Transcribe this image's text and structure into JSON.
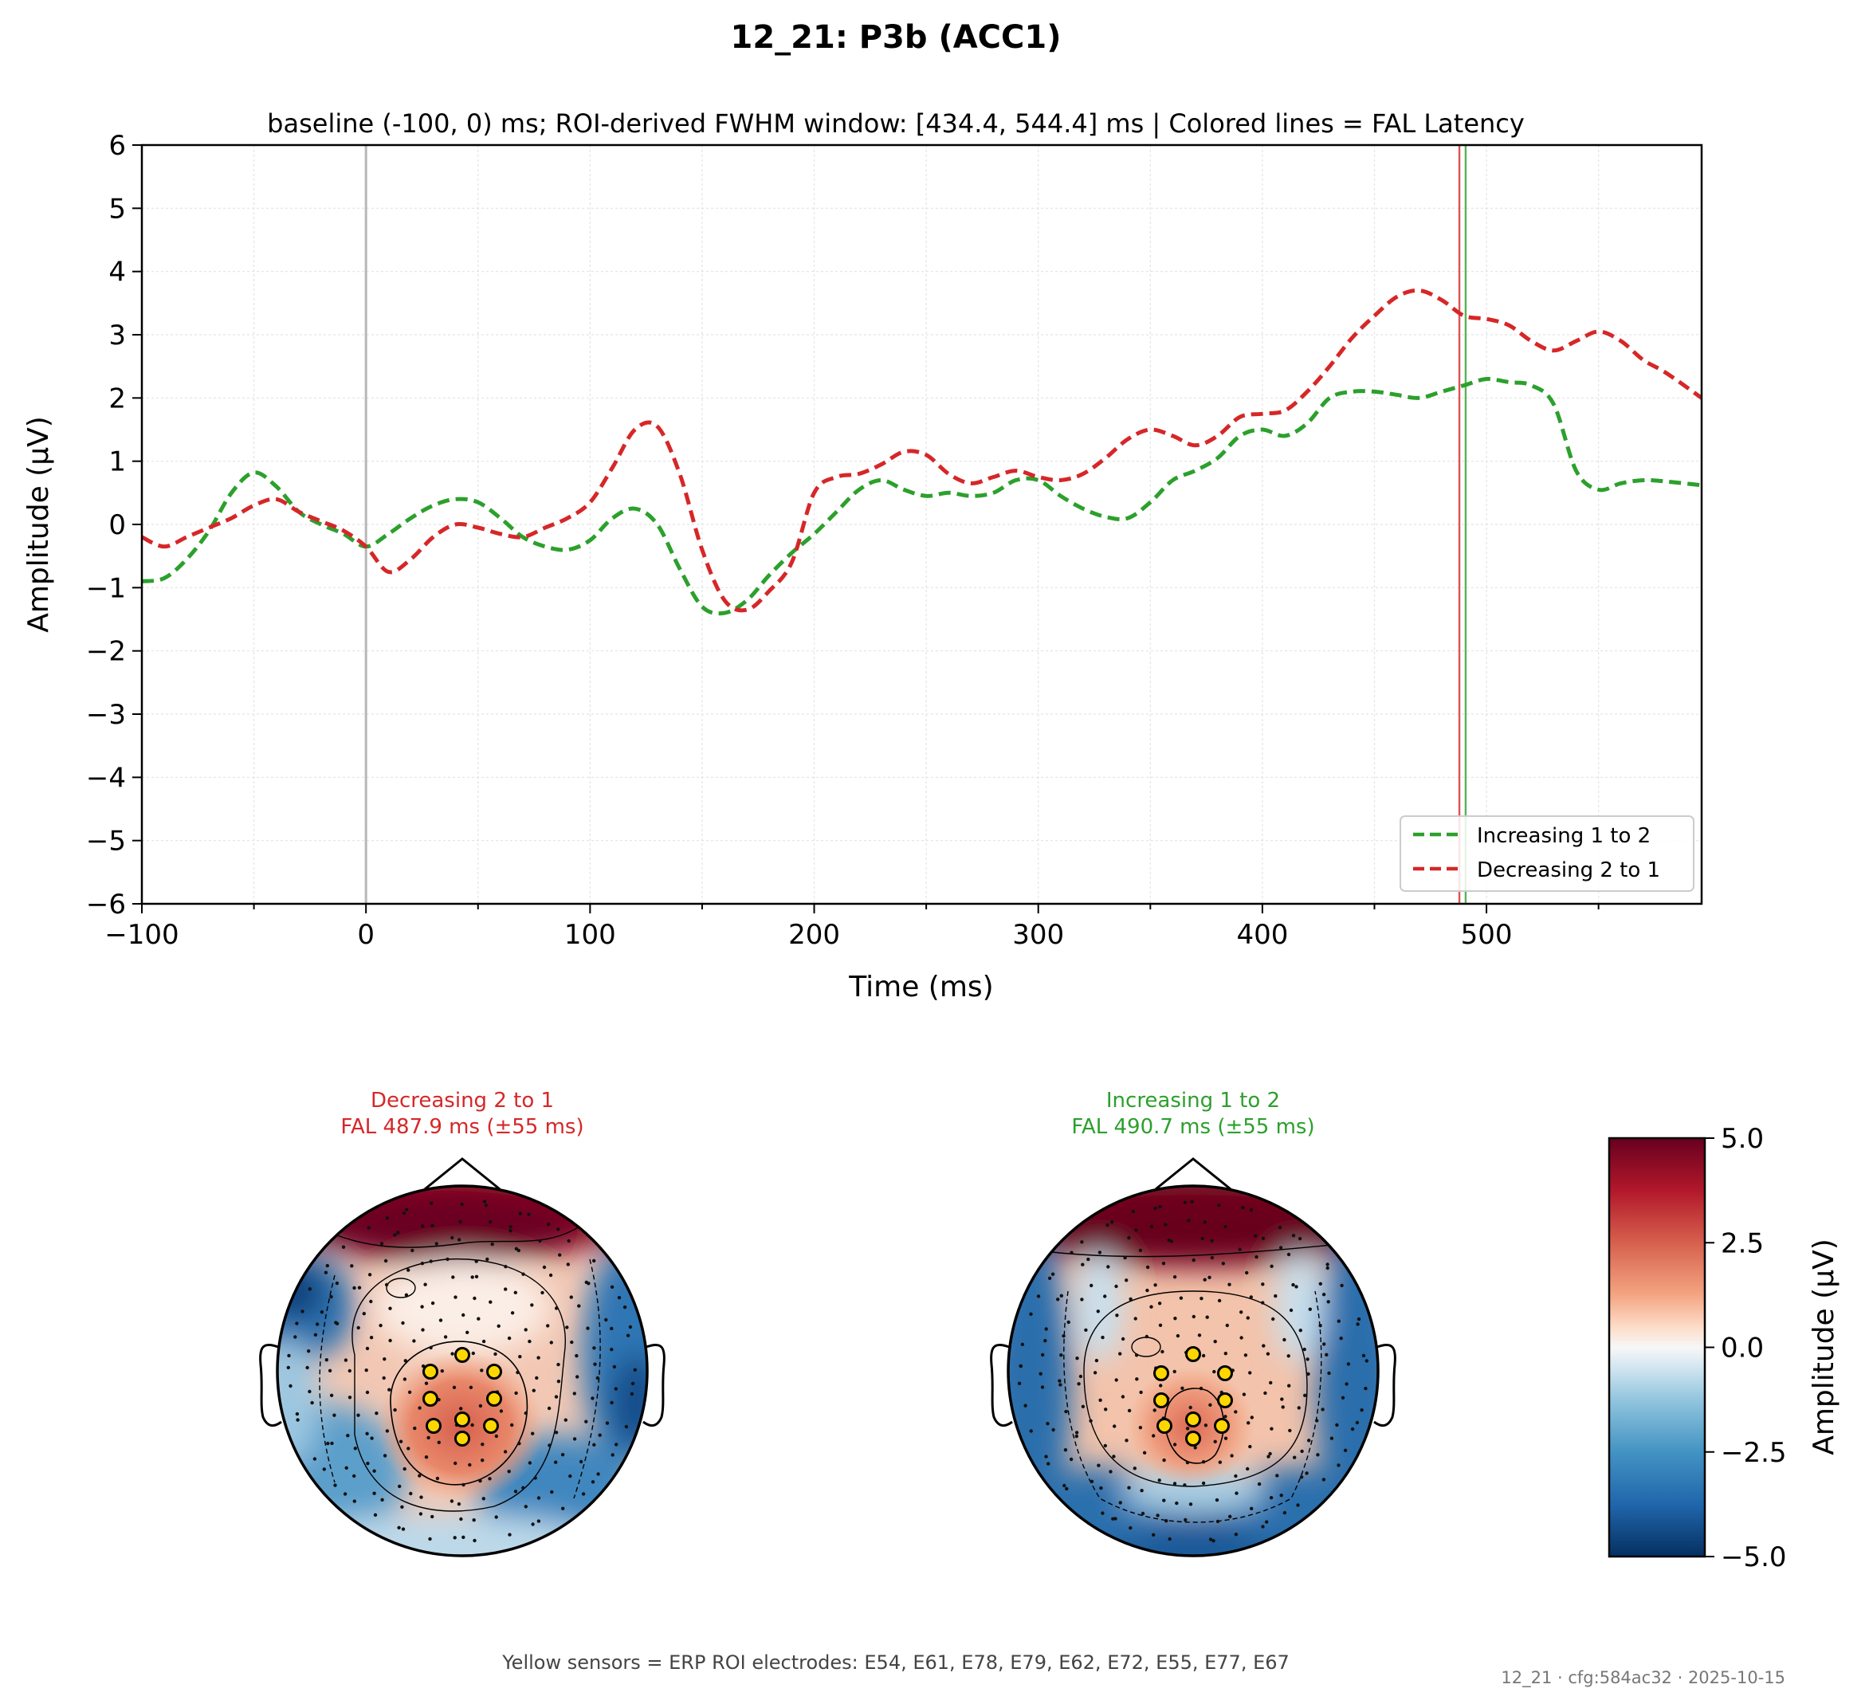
{
  "figure": {
    "title": "12_21: P3b (ACC1)",
    "subtitle": "baseline (-100, 0) ms; ROI-derived FWHM window: [434.4, 544.4] ms | Colored lines = FAL Latency",
    "footer_note": "Yellow sensors = ERP ROI electrodes: E54, E61, E78, E79, E62, E72, E55, E77, E67",
    "stamp": "12_21 · cfg:584ac32 · 2025-10-15"
  },
  "colors": {
    "increasing": "#2ca02c",
    "decreasing": "#d62728",
    "stimulus_line": "#b0b0b0",
    "sensor_highlight": "#ffd700"
  },
  "chart_data": [
    {
      "type": "line",
      "xlabel": "Time (ms)",
      "ylabel": "Amplitude (µV)",
      "xlim": [
        -100,
        596
      ],
      "ylim": [
        -6,
        6
      ],
      "xticks": [
        -100,
        0,
        100,
        200,
        300,
        400,
        500
      ],
      "yticks": [
        -6,
        -5,
        -4,
        -3,
        -2,
        -1,
        0,
        1,
        2,
        3,
        4,
        5,
        6
      ],
      "grid": true,
      "legend_position": "lower-right",
      "series": [
        {
          "name": "Increasing 1 to 2",
          "color": "#2ca02c",
          "style": "dashed",
          "x": [
            -100,
            -90,
            -80,
            -70,
            -60,
            -50,
            -40,
            -30,
            -20,
            -10,
            0,
            10,
            20,
            30,
            40,
            50,
            60,
            70,
            80,
            90,
            100,
            110,
            120,
            130,
            140,
            150,
            160,
            170,
            180,
            190,
            200,
            210,
            220,
            230,
            240,
            250,
            260,
            270,
            280,
            290,
            300,
            310,
            320,
            330,
            340,
            350,
            360,
            370,
            380,
            390,
            400,
            410,
            420,
            430,
            440,
            450,
            460,
            470,
            480,
            490,
            500,
            510,
            520,
            530,
            540,
            550,
            560,
            570,
            580,
            596
          ],
          "y": [
            -0.9,
            -0.85,
            -0.55,
            -0.1,
            0.5,
            0.82,
            0.6,
            0.2,
            0.0,
            -0.15,
            -0.35,
            -0.15,
            0.1,
            0.3,
            0.4,
            0.35,
            0.1,
            -0.2,
            -0.35,
            -0.4,
            -0.25,
            0.1,
            0.25,
            0.0,
            -0.7,
            -1.3,
            -1.4,
            -1.2,
            -0.8,
            -0.45,
            -0.15,
            0.2,
            0.55,
            0.7,
            0.55,
            0.45,
            0.5,
            0.45,
            0.5,
            0.7,
            0.7,
            0.45,
            0.25,
            0.12,
            0.1,
            0.35,
            0.7,
            0.85,
            1.05,
            1.4,
            1.5,
            1.4,
            1.6,
            2.0,
            2.1,
            2.1,
            2.05,
            2.0,
            2.1,
            2.2,
            2.3,
            2.25,
            2.2,
            1.9,
            0.85,
            0.55,
            0.65,
            0.7,
            0.68,
            0.62
          ]
        },
        {
          "name": "Decreasing 2 to 1",
          "color": "#d62728",
          "style": "dashed",
          "x": [
            -100,
            -90,
            -80,
            -70,
            -60,
            -50,
            -40,
            -30,
            -20,
            -10,
            0,
            10,
            20,
            30,
            40,
            50,
            60,
            70,
            80,
            90,
            100,
            110,
            120,
            130,
            140,
            150,
            160,
            170,
            180,
            190,
            200,
            210,
            220,
            230,
            240,
            250,
            260,
            270,
            280,
            290,
            300,
            310,
            320,
            330,
            340,
            350,
            360,
            370,
            380,
            390,
            400,
            410,
            420,
            430,
            440,
            450,
            460,
            470,
            480,
            490,
            500,
            510,
            520,
            530,
            540,
            550,
            560,
            570,
            580,
            596
          ],
          "y": [
            -0.2,
            -0.35,
            -0.2,
            -0.05,
            0.1,
            0.3,
            0.4,
            0.2,
            0.05,
            -0.1,
            -0.35,
            -0.75,
            -0.55,
            -0.2,
            0.0,
            -0.05,
            -0.15,
            -0.2,
            -0.05,
            0.1,
            0.35,
            0.9,
            1.5,
            1.55,
            0.8,
            -0.4,
            -1.2,
            -1.35,
            -1.05,
            -0.6,
            0.5,
            0.75,
            0.8,
            0.95,
            1.15,
            1.1,
            0.8,
            0.65,
            0.75,
            0.85,
            0.75,
            0.7,
            0.8,
            1.05,
            1.35,
            1.5,
            1.4,
            1.25,
            1.4,
            1.7,
            1.75,
            1.8,
            2.1,
            2.5,
            2.95,
            3.3,
            3.6,
            3.7,
            3.55,
            3.3,
            3.25,
            3.15,
            2.9,
            2.75,
            2.9,
            3.05,
            2.9,
            2.6,
            2.4,
            2.0
          ]
        }
      ],
      "vertical_lines": [
        {
          "x": 0,
          "color": "#b0b0b0"
        },
        {
          "x": 487.9,
          "color": "#d62728"
        },
        {
          "x": 490.7,
          "color": "#2ca02c"
        }
      ]
    },
    {
      "type": "heatmap",
      "colorbar": {
        "label": "Amplitude (µV)",
        "ticks": [
          "5.0",
          "2.5",
          "0.0",
          "−2.5",
          "−5.0"
        ],
        "vmin": -5,
        "vmax": 5
      },
      "topomaps": [
        {
          "condition": "Decreasing 2 to 1",
          "fal_label": "FAL 487.9 ms (±55 ms)",
          "color": "#d62728"
        },
        {
          "condition": "Increasing 1 to 2",
          "fal_label": "FAL 490.7 ms (±55 ms)",
          "color": "#2ca02c"
        }
      ]
    }
  ]
}
